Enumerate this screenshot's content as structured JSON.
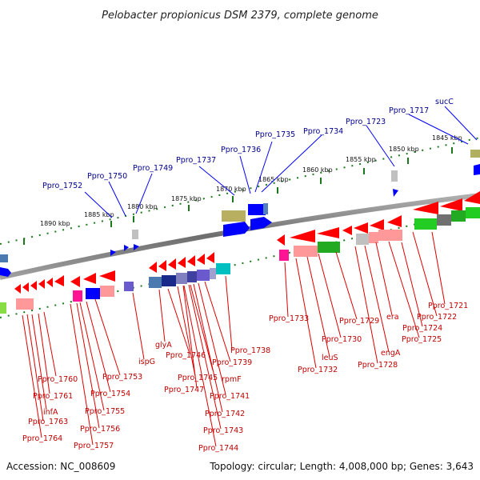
{
  "title": "Pelobacter propionicus DSM 2379, complete genome",
  "footer": {
    "accession": "Accession: NC_008609",
    "topology": "Topology: circular; Length: 4,008,000 bp; Genes: 3,643"
  },
  "kbp_labels": [
    "1890 kbp",
    "1885 kbp",
    "1880 kbp",
    "1875 kbp",
    "1870 kbp",
    "1865 kbp",
    "1860 kbp",
    "1855 kbp",
    "1850 kbp",
    "1845 kbp"
  ],
  "top_genes": [
    "Ppro_1752",
    "Ppro_1750",
    "Ppro_1749",
    "Ppro_1737",
    "Ppro_1736",
    "Ppro_1735",
    "Ppro_1734",
    "Ppro_1723",
    "Ppro_1717",
    "sucC"
  ],
  "bottom_genes": [
    "Ppro_1760",
    "Ppro_1761",
    "infA",
    "Ppro_1763",
    "Ppro_1764",
    "Ppro_1753",
    "Ppro_1754",
    "Ppro_1755",
    "Ppro_1756",
    "Ppro_1757",
    "ispG",
    "glyA",
    "Ppro_1746",
    "Ppro_1745",
    "Ppro_1747",
    "rpmF",
    "Ppro_1738",
    "Ppro_1739",
    "Ppro_1741",
    "Ppro_1742",
    "Ppro_1743",
    "Ppro_1744",
    "Ppro_1733",
    "Ppro_1732",
    "leuS",
    "Ppro_1730",
    "Ppro_1729",
    "engA",
    "Ppro_1728",
    "era",
    "Ppro_1725",
    "Ppro_1724",
    "Ppro_1722",
    "Ppro_1721"
  ],
  "colors": {
    "forward_gene": "#0000ff",
    "reverse_gene": "#ff0000",
    "backbone": "#808080",
    "tick": "#1a7a1a",
    "top_label": "#00008b",
    "bottom_label": "#c00000"
  }
}
